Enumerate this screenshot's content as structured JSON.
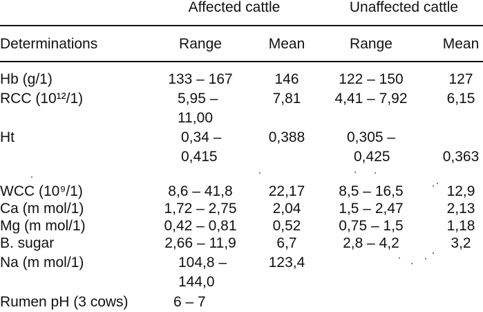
{
  "table": {
    "group_headers": [
      "Affected cattle",
      "Unaffected cattle"
    ],
    "column_headers": [
      "Determinations",
      "Range",
      "Mean",
      "Range",
      "Mean"
    ],
    "rows": [
      {
        "label": "Hb (g/1)",
        "aff_range": [
          "133 – 167"
        ],
        "aff_mean": "146",
        "un_range": [
          "122 – 150"
        ],
        "un_mean": "127"
      },
      {
        "label": "RCC (10¹²/1)",
        "aff_range": [
          "5,95 –",
          "11,00"
        ],
        "aff_mean": "7,81",
        "un_range": [
          "4,41 – 7,92"
        ],
        "un_mean": "6,15"
      },
      {
        "label": "Ht",
        "aff_range": [
          "0,34 –",
          "0,415"
        ],
        "aff_mean": "0,388",
        "un_range": [
          "0,305 –",
          "0,425"
        ],
        "un_mean": "0,363"
      },
      {
        "label": "WCC (10⁹/1)",
        "aff_range": [
          "8,6 – 41,8"
        ],
        "aff_mean": "22,17",
        "un_range": [
          "8,5 – 16,5"
        ],
        "un_mean": "12,9"
      },
      {
        "label": "Ca (m mol/1)",
        "aff_range": [
          "1,72 – 2,75"
        ],
        "aff_mean": "2,04",
        "un_range": [
          "1,5 – 2,47"
        ],
        "un_mean": "2,13"
      },
      {
        "label": "Mg (m mol/1)",
        "aff_range": [
          "0,42 – 0,81"
        ],
        "aff_mean": "0,52",
        "un_range": [
          "0,75 – 1,5"
        ],
        "un_mean": "1,18"
      },
      {
        "label": "B. sugar",
        "aff_range": [
          "2,66 – 11,9"
        ],
        "aff_mean": "6,7",
        "un_range": [
          "2,8 – 4,2"
        ],
        "un_mean": "3,2"
      },
      {
        "label": "Na (m mol/1)",
        "aff_range": [
          "104,8 –",
          "144,0"
        ],
        "aff_mean": "123,4",
        "un_range": [],
        "un_mean": ""
      },
      {
        "label": "Rumen pH (3 cows)",
        "aff_range": [
          "6 – 7"
        ],
        "aff_mean": "",
        "un_range": [],
        "un_mean": ""
      }
    ]
  }
}
